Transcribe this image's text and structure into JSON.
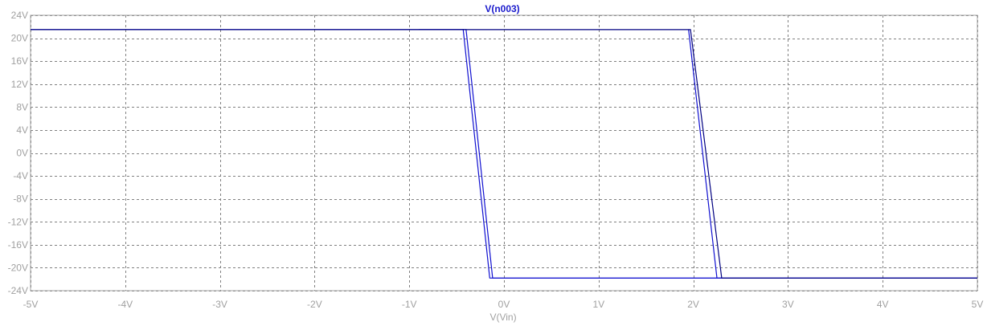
{
  "chart_data": {
    "type": "line",
    "title": "V(n003)",
    "xlabel": "V(Vin)",
    "ylabel": "",
    "xlim": [
      -5,
      5
    ],
    "ylim": [
      -24,
      24
    ],
    "grid": true,
    "x_ticks": [
      {
        "v": -5,
        "label": "-5V"
      },
      {
        "v": -4,
        "label": "-4V"
      },
      {
        "v": -3,
        "label": "-3V"
      },
      {
        "v": -2,
        "label": "-2V"
      },
      {
        "v": -1,
        "label": "-1V"
      },
      {
        "v": 0,
        "label": "0V"
      },
      {
        "v": 1,
        "label": "1V"
      },
      {
        "v": 2,
        "label": "2V"
      },
      {
        "v": 3,
        "label": "3V"
      },
      {
        "v": 4,
        "label": "4V"
      },
      {
        "v": 5,
        "label": "5V"
      }
    ],
    "y_ticks": [
      {
        "v": 24,
        "label": "24V"
      },
      {
        "v": 20,
        "label": "20V"
      },
      {
        "v": 16,
        "label": "16V"
      },
      {
        "v": 12,
        "label": "12V"
      },
      {
        "v": 8,
        "label": "8V"
      },
      {
        "v": 4,
        "label": "4V"
      },
      {
        "v": 0,
        "label": "0V"
      },
      {
        "v": -4,
        "label": "-4V"
      },
      {
        "v": -8,
        "label": "-8V"
      },
      {
        "v": -12,
        "label": "-12V"
      },
      {
        "v": -16,
        "label": "-16V"
      },
      {
        "v": -20,
        "label": "-20V"
      },
      {
        "v": -24,
        "label": "-24V"
      }
    ],
    "series": [
      {
        "color": "#1010d0",
        "x": [
          -5,
          -0.4,
          -0.12,
          1.98,
          2.28,
          5
        ],
        "y": [
          21.5,
          21.5,
          -21.8,
          21.5,
          -21.8,
          -21.8
        ],
        "segments": [
          {
            "x": [
              -5,
              -0.4,
              -0.12,
              5
            ],
            "y": [
              21.5,
              21.5,
              -21.8,
              -21.8
            ]
          }
        ]
      },
      {
        "color": "#1010d0",
        "segments": [
          {
            "x": [
              -0.9,
              -0.43,
              -0.15,
              5
            ],
            "y": [
              21.5,
              21.5,
              -21.8,
              -21.8
            ]
          },
          {
            "x": [
              1.95,
              2.25,
              2.3
            ],
            "y": [
              21.5,
              -21.8,
              -21.8
            ]
          }
        ]
      },
      {
        "color": "#000080",
        "segments": [
          {
            "x": [
              -5,
              1.97,
              2.3,
              5
            ],
            "y": [
              21.5,
              21.5,
              -21.8,
              -21.8
            ]
          }
        ]
      }
    ],
    "title_color": "#1a1acc"
  }
}
